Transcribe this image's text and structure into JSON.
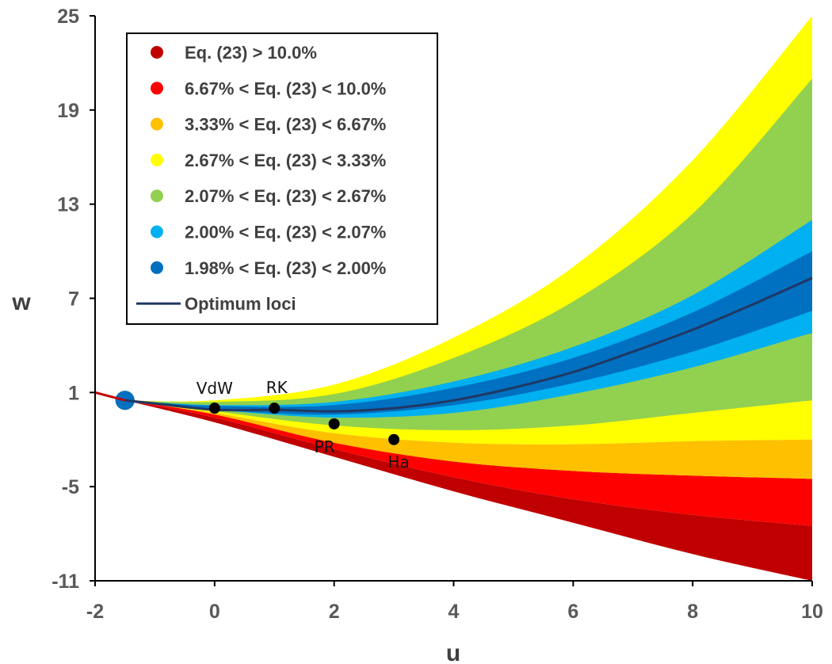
{
  "chart_data": {
    "type": "area",
    "xlabel": "u",
    "ylabel": "w",
    "xlim": [
      -2,
      10
    ],
    "ylim": [
      -11,
      25
    ],
    "xticks": [
      "-2",
      "0",
      "2",
      "4",
      "6",
      "8",
      "10"
    ],
    "yticks": [
      "-11",
      "-5",
      "1",
      "7",
      "13",
      "19",
      "25"
    ],
    "grid": false,
    "legend_position": "top-left",
    "series": [
      {
        "name": "Eq. (23) > 10.0%",
        "color": "#c00000",
        "lower": [
          [
            -1.5,
            0.5
          ],
          [
            0,
            -0.9
          ],
          [
            2,
            -3.1
          ],
          [
            4,
            -5.3
          ],
          [
            6,
            -7.3
          ],
          [
            8,
            -9.3
          ],
          [
            10,
            -11.0
          ]
        ],
        "upper": [
          [
            -1.5,
            0.5
          ],
          [
            0,
            -0.6
          ],
          [
            2,
            -2.6
          ],
          [
            4,
            -4.4
          ],
          [
            6,
            -5.8
          ],
          [
            8,
            -6.8
          ],
          [
            10,
            -7.5
          ]
        ]
      },
      {
        "name": "6.67% < Eq. (23) < 10.0%",
        "color": "#ff0000",
        "lower": [
          [
            -1.5,
            0.5
          ],
          [
            0,
            -0.6
          ],
          [
            2,
            -2.6
          ],
          [
            4,
            -4.4
          ],
          [
            6,
            -5.8
          ],
          [
            8,
            -6.8
          ],
          [
            10,
            -7.5
          ]
        ],
        "upper": [
          [
            -1.5,
            0.5
          ],
          [
            0,
            -0.4
          ],
          [
            2,
            -2.2
          ],
          [
            4,
            -3.4
          ],
          [
            6,
            -4.0
          ],
          [
            8,
            -4.3
          ],
          [
            10,
            -4.5
          ]
        ]
      },
      {
        "name": "3.33% < Eq. (23) < 6.67%",
        "color": "#ffc000",
        "lower": [
          [
            -1.5,
            0.5
          ],
          [
            0,
            -0.4
          ],
          [
            2,
            -2.2
          ],
          [
            4,
            -3.4
          ],
          [
            6,
            -4.0
          ],
          [
            8,
            -4.3
          ],
          [
            10,
            -4.5
          ]
        ],
        "upper": [
          [
            -1.5,
            0.5
          ],
          [
            0,
            -0.3
          ],
          [
            2,
            -1.6
          ],
          [
            4,
            -2.2
          ],
          [
            6,
            -2.3
          ],
          [
            8,
            -2.1
          ],
          [
            10,
            -2.0
          ]
        ]
      },
      {
        "name": "2.67% < Eq. (23) < 3.33%",
        "color": "#ffff00",
        "lower": [
          [
            -1.5,
            0.5
          ],
          [
            0,
            -0.3
          ],
          [
            2,
            -1.6
          ],
          [
            4,
            -2.2
          ],
          [
            6,
            -2.3
          ],
          [
            8,
            -2.1
          ],
          [
            10,
            -2.0
          ]
        ],
        "upper": [
          [
            -1.5,
            0.5
          ],
          [
            0,
            0.5
          ],
          [
            2,
            1.5
          ],
          [
            4,
            4.5
          ],
          [
            6,
            9.0
          ],
          [
            8,
            15.8
          ],
          [
            10,
            25.0
          ]
        ]
      },
      {
        "name": "2.07% < Eq. (23) < 2.67%",
        "color": "#92d050",
        "lower": [
          [
            -1.5,
            0.5
          ],
          [
            0,
            -0.2
          ],
          [
            2,
            -1.1
          ],
          [
            4,
            -1.4
          ],
          [
            6,
            -1.1
          ],
          [
            8,
            -0.3
          ],
          [
            10,
            0.5
          ]
        ],
        "upper": [
          [
            -1.5,
            0.5
          ],
          [
            0,
            0.4
          ],
          [
            2,
            0.9
          ],
          [
            4,
            3.2
          ],
          [
            6,
            6.8
          ],
          [
            8,
            12.4
          ],
          [
            10,
            21.0
          ]
        ]
      },
      {
        "name": "2.00% < Eq. (23) < 2.07%",
        "color": "#00b0f0",
        "lower": [
          [
            -1.5,
            0.5
          ],
          [
            0,
            -0.1
          ],
          [
            2,
            -0.6
          ],
          [
            4,
            -0.3
          ],
          [
            6,
            0.9
          ],
          [
            8,
            2.6
          ],
          [
            10,
            4.8
          ]
        ],
        "upper": [
          [
            -1.5,
            0.5
          ],
          [
            0,
            0.2
          ],
          [
            2,
            0.4
          ],
          [
            4,
            1.7
          ],
          [
            6,
            3.9
          ],
          [
            8,
            7.2
          ],
          [
            10,
            12.0
          ]
        ]
      },
      {
        "name": "1.98% < Eq. (23) < 2.00%",
        "color": "#0070c0",
        "lower": [
          [
            -1.5,
            0.5
          ],
          [
            0,
            -0.1
          ],
          [
            2,
            -0.4
          ],
          [
            4,
            0.2
          ],
          [
            6,
            1.6
          ],
          [
            8,
            3.6
          ],
          [
            10,
            6.2
          ]
        ],
        "upper": [
          [
            -1.5,
            0.5
          ],
          [
            0,
            0.15
          ],
          [
            2,
            0.2
          ],
          [
            4,
            1.3
          ],
          [
            6,
            3.2
          ],
          [
            8,
            6.1
          ],
          [
            10,
            10.0
          ]
        ]
      },
      {
        "name": "Optimum loci",
        "color": "#1f3864",
        "line": true,
        "x": [
          -1.5,
          -1,
          0,
          1,
          2,
          3,
          4,
          5,
          6,
          7,
          8,
          9,
          10
        ],
        "y": [
          0.5,
          0.3,
          -0.1,
          -0.1,
          -0.2,
          0.0,
          0.5,
          1.3,
          2.3,
          3.6,
          5.0,
          6.6,
          8.3
        ]
      }
    ],
    "points": [
      {
        "label": "VdW",
        "x": 0,
        "y": 0.0
      },
      {
        "label": "RK",
        "x": 1,
        "y": 0.0
      },
      {
        "label": "PR",
        "x": 2,
        "y": -1.0
      },
      {
        "label": "Ha",
        "x": 3,
        "y": -2.0
      }
    ],
    "boundary_line": {
      "color": "#c00000",
      "x": [
        -2,
        -1.5
      ],
      "y": [
        1.0,
        0.5
      ]
    }
  }
}
